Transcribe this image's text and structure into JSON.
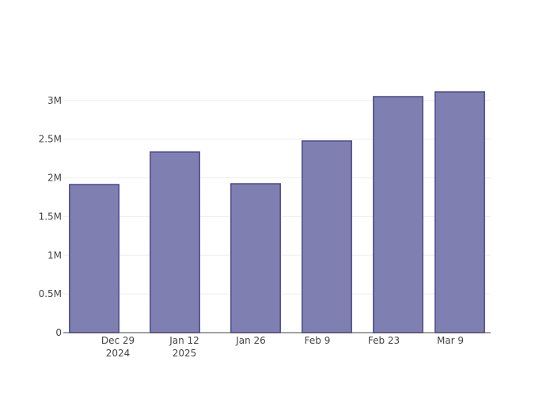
{
  "chart_data": {
    "type": "bar",
    "x": [
      "2024-12-24",
      "2025-01-10",
      "2025-01-27",
      "2025-02-11",
      "2025-02-26",
      "2025-03-11"
    ],
    "values": [
      1914000,
      2334000,
      1924000,
      2477000,
      3050000,
      3111000
    ],
    "color": "#7f7fb2",
    "line_color": "#4b4b8c",
    "xlim": [
      "2024-12-17T12:00",
      "2025-03-17T12:00"
    ],
    "xticks": [
      {
        "value": "2024-12-29",
        "label": "Dec 29\n2024"
      },
      {
        "value": "2025-01-12",
        "label": "Jan 12\n2025"
      },
      {
        "value": "2025-01-26",
        "label": "Jan 26"
      },
      {
        "value": "2025-02-09",
        "label": "Feb 9"
      },
      {
        "value": "2025-02-23",
        "label": "Feb 23"
      },
      {
        "value": "2025-03-09",
        "label": "Mar 9"
      }
    ],
    "ylim": [
      0,
      3275000
    ],
    "yticks": [
      0,
      {
        "value": 500000,
        "label": "0.5M"
      },
      {
        "value": 1000000,
        "label": "1M"
      },
      {
        "value": 1500000,
        "label": "1.5M"
      },
      {
        "value": 2000000,
        "label": "2M"
      },
      {
        "value": 2500000,
        "label": "2.5M"
      },
      {
        "value": 3000000,
        "label": "3M"
      }
    ],
    "grid": true
  }
}
